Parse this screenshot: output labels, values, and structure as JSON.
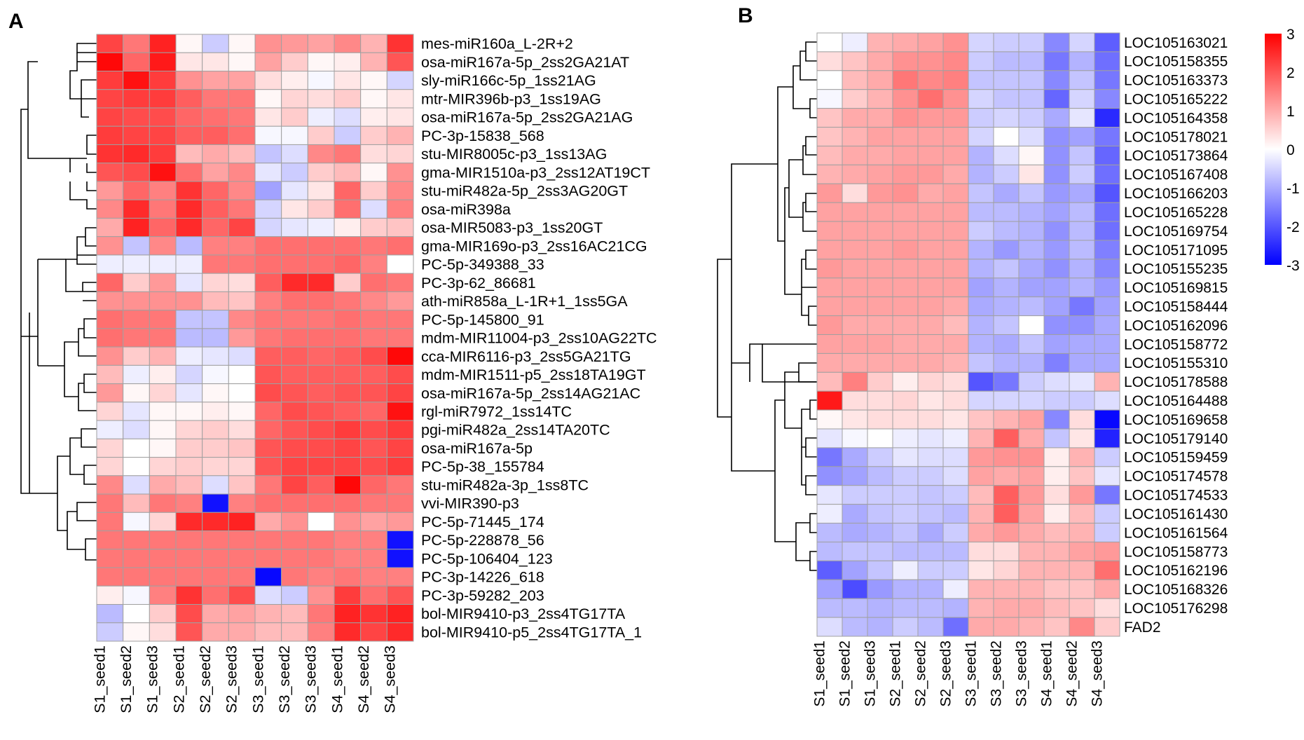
{
  "chart_data": [
    {
      "type": "heatmap",
      "panel_label": "A",
      "title": "",
      "columns": [
        "S1_seed1",
        "S1_seed2",
        "S1_seed3",
        "S2_seed1",
        "S2_seed2",
        "S2_seed3",
        "S3_seed1",
        "S3_seed2",
        "S3_seed3",
        "S4_seed1",
        "S4_seed2",
        "S4_seed3"
      ],
      "rows": [
        "mes-miR160a_L-2R+2",
        "osa-miR167a-5p_2ss2GA21AT",
        "sly-miR166c-5p_1ss21AG",
        "mtr-MIR396b-p3_1ss19AG",
        "osa-miR167a-5p_2ss2GA21AG",
        "PC-3p-15838_568",
        "stu-MIR8005c-p3_1ss13AG",
        "gma-MIR1510a-p3_2ss12AT19CT",
        "stu-miR482a-5p_2ss3AG20GT",
        "osa-miR398a",
        "osa-MIR5083-p3_1ss20GT",
        "gma-MIR169o-p3_2ss16AC21CG",
        "PC-5p-349388_33",
        "PC-3p-62_86681",
        "ath-miR858a_L-1R+1_1ss5GA",
        "PC-5p-145800_91",
        "mdm-MIR11004-p3_2ss10AG22TC",
        "cca-MIR6116-p3_2ss5GA21TG",
        "mdm-MIR1511-p5_2ss18TA19GT",
        "osa-miR167a-5p_2ss14AG21AC",
        "rgl-miR7972_1ss14TC",
        "pgi-miR482a_2ss14TA20TC",
        "osa-miR167a-5p",
        "PC-5p-38_155784",
        "stu-miR482a-3p_1ss8TC",
        "vvi-MIR390-p3",
        "PC-5p-71445_174",
        "PC-5p-228878_56",
        "PC-5p-106404_123",
        "PC-3p-14226_618",
        "PC-3p-59282_203",
        "bol-MIR9410-p3_2ss4TG17TA",
        "bol-MIR9410-p5_2ss4TG17TA_1"
      ],
      "values": [
        [
          2.2,
          1.6,
          2.6,
          0.1,
          -0.6,
          0.1,
          1.3,
          1.2,
          1.1,
          1.4,
          0.9,
          2.4
        ],
        [
          2.9,
          1.8,
          2.7,
          0.3,
          0.3,
          0.1,
          1.1,
          0.6,
          0.1,
          0.2,
          0.9,
          2.0
        ],
        [
          2.3,
          2.8,
          2.3,
          1.3,
          1.1,
          1.1,
          0.4,
          0.2,
          -0.1,
          0.3,
          0.1,
          -0.5
        ],
        [
          2.2,
          2.3,
          2.3,
          1.9,
          1.6,
          1.6,
          0.1,
          0.5,
          0.4,
          0.6,
          0.1,
          0.3
        ],
        [
          2.2,
          2.1,
          2.1,
          1.8,
          1.7,
          1.6,
          0.3,
          0.6,
          -0.2,
          -0.4,
          0.2,
          0.3
        ],
        [
          2.3,
          2.2,
          2.2,
          1.9,
          1.9,
          1.7,
          -0.1,
          -0.1,
          0.6,
          -0.6,
          0.6,
          0.9
        ],
        [
          2.4,
          2.5,
          2.3,
          0.8,
          1.0,
          0.8,
          -0.7,
          -0.4,
          1.4,
          1.6,
          0.4,
          0.5
        ],
        [
          2.0,
          2.1,
          2.8,
          1.7,
          1.1,
          1.4,
          -0.3,
          -0.6,
          0.6,
          0.8,
          0.1,
          1.3
        ],
        [
          1.2,
          1.8,
          1.5,
          2.4,
          1.8,
          1.4,
          -1.1,
          -0.3,
          0.3,
          1.8,
          0.6,
          1.4
        ],
        [
          1.4,
          2.5,
          1.6,
          2.5,
          1.9,
          1.6,
          -0.5,
          0.3,
          0.6,
          1.7,
          -0.4,
          1.5
        ],
        [
          1.0,
          2.6,
          1.8,
          2.5,
          1.8,
          2.2,
          -0.5,
          -0.3,
          -0.2,
          0.2,
          0.6,
          0.7
        ],
        [
          1.3,
          -0.7,
          1.4,
          -0.8,
          1.5,
          1.5,
          1.7,
          1.7,
          1.7,
          1.7,
          1.6,
          1.7
        ],
        [
          -0.2,
          -0.2,
          -0.2,
          -0.2,
          1.6,
          1.6,
          1.7,
          1.7,
          1.7,
          1.8,
          1.5,
          0.0
        ],
        [
          1.8,
          0.6,
          1.2,
          -0.3,
          0.5,
          0.4,
          1.9,
          2.5,
          2.5,
          0.6,
          1.7,
          1.6
        ],
        [
          1.3,
          1.3,
          1.3,
          1.3,
          0.8,
          0.7,
          1.5,
          1.7,
          1.7,
          1.6,
          1.4,
          1.2
        ],
        [
          1.7,
          1.6,
          1.6,
          -0.7,
          -0.7,
          1.4,
          1.6,
          1.6,
          1.6,
          1.7,
          1.6,
          1.6
        ],
        [
          1.7,
          1.6,
          1.6,
          -0.8,
          -0.8,
          1.2,
          1.6,
          1.7,
          1.7,
          1.7,
          1.6,
          1.6
        ],
        [
          1.3,
          0.6,
          0.9,
          -0.2,
          -0.3,
          -0.4,
          1.9,
          1.9,
          1.8,
          1.9,
          2.1,
          2.9
        ],
        [
          0.8,
          -0.2,
          0.2,
          -0.5,
          -0.1,
          0.0,
          2.0,
          1.9,
          1.9,
          1.9,
          1.9,
          2.1
        ],
        [
          1.2,
          0.1,
          0.5,
          -0.3,
          0.1,
          0.0,
          2.1,
          2.0,
          1.9,
          2.0,
          2.0,
          2.2
        ],
        [
          0.5,
          -0.3,
          0.1,
          0.1,
          0.2,
          0.1,
          1.8,
          2.1,
          2.0,
          1.9,
          1.8,
          2.8
        ],
        [
          -0.2,
          -0.4,
          0.1,
          0.5,
          0.6,
          0.4,
          1.8,
          2.0,
          2.1,
          2.3,
          2.1,
          2.3
        ],
        [
          0.5,
          0.0,
          0.1,
          0.6,
          0.6,
          0.7,
          2.0,
          2.1,
          2.1,
          2.2,
          2.0,
          2.2
        ],
        [
          0.5,
          0.0,
          0.5,
          0.6,
          0.5,
          0.5,
          2.0,
          2.2,
          2.2,
          2.2,
          2.1,
          2.3
        ],
        [
          1.4,
          -0.4,
          1.0,
          0.8,
          -0.4,
          0.7,
          1.6,
          2.2,
          1.9,
          2.9,
          1.8,
          1.6
        ],
        [
          1.6,
          0.8,
          1.6,
          1.5,
          -2.8,
          1.5,
          1.7,
          1.7,
          1.7,
          1.7,
          1.6,
          1.6
        ],
        [
          1.6,
          -0.1,
          0.5,
          2.5,
          2.5,
          2.6,
          1.0,
          1.3,
          0.0,
          1.3,
          1.1,
          1.2
        ],
        [
          1.6,
          1.6,
          1.6,
          1.6,
          1.6,
          1.6,
          1.6,
          1.6,
          1.6,
          1.5,
          1.5,
          -2.8
        ],
        [
          1.6,
          1.6,
          1.6,
          1.6,
          1.6,
          1.6,
          1.6,
          1.6,
          1.6,
          1.5,
          1.5,
          -2.8
        ],
        [
          1.6,
          1.6,
          1.6,
          1.6,
          1.6,
          1.6,
          -2.9,
          1.6,
          1.5,
          1.6,
          1.5,
          1.5
        ],
        [
          0.2,
          -0.1,
          1.5,
          2.4,
          1.7,
          2.1,
          -0.4,
          -0.6,
          1.3,
          2.3,
          1.7,
          2.0
        ],
        [
          -0.8,
          0.0,
          0.6,
          2.1,
          1.0,
          1.1,
          0.9,
          0.8,
          1.6,
          2.6,
          2.4,
          2.6
        ],
        [
          -0.6,
          0.1,
          0.4,
          2.0,
          1.0,
          1.0,
          0.8,
          0.8,
          1.5,
          2.5,
          2.2,
          2.5
        ]
      ],
      "scale_range": [
        -3,
        3
      ]
    },
    {
      "type": "heatmap",
      "panel_label": "B",
      "title": "",
      "columns": [
        "S1_seed1",
        "S1_seed2",
        "S1_seed3",
        "S2_seed1",
        "S2_seed2",
        "S2_seed3",
        "S3_seed1",
        "S3_seed2",
        "S3_seed3",
        "S4_seed1",
        "S4_seed2",
        "S4_seed3"
      ],
      "rows": [
        "LOC105163021",
        "LOC105158355",
        "LOC105163373",
        "LOC105165222",
        "LOC105164358",
        "LOC105178021",
        "LOC105173864",
        "LOC105167408",
        "LOC105166203",
        "LOC105165228",
        "LOC105169754",
        "LOC105171095",
        "LOC105155235",
        "LOC105169815",
        "LOC105158444",
        "LOC105162096",
        "LOC105158772",
        "LOC105155310",
        "LOC105178588",
        "LOC105164488",
        "LOC105169658",
        "LOC105179140",
        "LOC105159459",
        "LOC105174578",
        "LOC105174533",
        "LOC105161430",
        "LOC105161564",
        "LOC105158773",
        "LOC105162196",
        "LOC105168326",
        "LOC105176298",
        "FAD2"
      ],
      "values": [
        [
          0.0,
          -0.2,
          0.9,
          1.0,
          1.1,
          1.3,
          -0.5,
          -0.6,
          -0.6,
          -1.4,
          -0.5,
          -1.9
        ],
        [
          0.4,
          0.7,
          1.0,
          1.3,
          1.3,
          1.4,
          -0.6,
          -0.8,
          -0.8,
          -1.6,
          -0.9,
          -1.7
        ],
        [
          0.0,
          0.8,
          1.0,
          1.6,
          1.4,
          1.5,
          -0.7,
          -0.7,
          -0.7,
          -1.4,
          -0.7,
          -1.6
        ],
        [
          -0.1,
          0.6,
          0.9,
          1.3,
          1.7,
          1.3,
          -0.5,
          -0.7,
          -0.7,
          -1.8,
          -0.5,
          -1.4
        ],
        [
          0.7,
          1.0,
          1.0,
          1.3,
          1.2,
          1.2,
          -0.6,
          -0.5,
          -0.6,
          -1.0,
          -0.3,
          -2.5
        ],
        [
          0.7,
          0.9,
          1.1,
          1.1,
          1.1,
          1.1,
          -0.5,
          0.0,
          -0.4,
          -1.3,
          -1.1,
          -1.6
        ],
        [
          0.8,
          1.0,
          1.0,
          1.1,
          1.1,
          1.1,
          -0.9,
          -0.4,
          0.1,
          -1.3,
          -0.7,
          -1.8
        ],
        [
          0.9,
          1.0,
          1.1,
          1.2,
          1.2,
          1.0,
          -0.9,
          -0.6,
          0.3,
          -1.3,
          -0.6,
          -1.7
        ],
        [
          1.2,
          0.4,
          1.2,
          1.3,
          1.0,
          1.1,
          -0.7,
          -1.0,
          -0.7,
          -1.2,
          -1.0,
          -2.0
        ],
        [
          1.1,
          1.1,
          1.1,
          1.1,
          1.1,
          1.1,
          -0.8,
          -0.8,
          -0.9,
          -1.1,
          -0.8,
          -1.7
        ],
        [
          1.1,
          1.1,
          1.1,
          1.1,
          1.1,
          1.1,
          -0.6,
          -0.8,
          -0.9,
          -1.3,
          -0.8,
          -1.7
        ],
        [
          1.1,
          1.1,
          1.1,
          1.2,
          1.1,
          1.1,
          -0.9,
          -1.2,
          -0.9,
          -1.2,
          -0.8,
          -1.5
        ],
        [
          1.2,
          1.1,
          1.1,
          1.1,
          1.1,
          1.1,
          -0.9,
          -0.7,
          -1.0,
          -1.3,
          -0.9,
          -1.4
        ],
        [
          1.1,
          1.1,
          1.1,
          1.1,
          1.1,
          1.1,
          -1.1,
          -0.9,
          -1.1,
          -1.1,
          -0.9,
          -1.2
        ],
        [
          1.1,
          1.1,
          1.1,
          1.1,
          1.1,
          1.0,
          -1.0,
          -0.9,
          -0.8,
          -1.1,
          -1.6,
          -1.1
        ],
        [
          1.2,
          1.0,
          1.0,
          1.0,
          1.0,
          0.8,
          -0.9,
          -0.7,
          0.0,
          -1.3,
          -1.3,
          -1.0
        ],
        [
          1.1,
          1.1,
          1.1,
          1.0,
          1.0,
          1.0,
          -0.9,
          -1.0,
          -0.7,
          -1.1,
          -1.0,
          -1.0
        ],
        [
          1.0,
          1.0,
          1.0,
          1.0,
          1.0,
          0.9,
          -0.7,
          -0.9,
          -0.9,
          -1.5,
          -1.0,
          -1.0
        ],
        [
          0.8,
          1.5,
          0.6,
          0.2,
          0.5,
          0.4,
          -2.0,
          -1.6,
          -0.6,
          -0.4,
          -0.3,
          0.9
        ],
        [
          2.7,
          0.4,
          0.4,
          0.5,
          0.3,
          0.4,
          -0.5,
          -0.5,
          -0.5,
          -0.6,
          -0.6,
          -0.4
        ],
        [
          0.1,
          0.3,
          0.4,
          0.4,
          0.4,
          0.3,
          0.7,
          0.9,
          1.1,
          -1.4,
          0.4,
          -2.9
        ],
        [
          -0.3,
          -0.1,
          0.0,
          -0.2,
          -0.3,
          -0.2,
          0.9,
          1.9,
          1.0,
          -0.7,
          0.3,
          -2.6
        ],
        [
          -1.6,
          -1.0,
          -0.6,
          -0.3,
          -0.4,
          -0.4,
          1.2,
          1.3,
          1.3,
          0.2,
          0.9,
          -0.6
        ],
        [
          -1.3,
          -1.1,
          -0.8,
          -0.6,
          -0.6,
          -0.4,
          1.1,
          1.0,
          1.1,
          0.2,
          0.7,
          -0.3
        ],
        [
          -0.3,
          -0.6,
          -0.6,
          -0.6,
          -0.7,
          -0.6,
          0.8,
          1.9,
          1.2,
          0.4,
          1.2,
          -1.6
        ],
        [
          -0.2,
          -1.0,
          -0.7,
          -0.6,
          -0.7,
          -0.8,
          0.9,
          1.9,
          1.1,
          0.2,
          0.8,
          -0.6
        ],
        [
          -0.8,
          -1.0,
          -0.9,
          -0.7,
          -1.0,
          -0.6,
          1.0,
          1.2,
          1.0,
          0.8,
          0.9,
          -0.6
        ],
        [
          -0.8,
          -0.7,
          -0.7,
          -0.8,
          -0.8,
          -0.8,
          0.4,
          0.4,
          0.9,
          0.9,
          1.1,
          1.2
        ],
        [
          -1.9,
          -1.1,
          -0.7,
          -0.2,
          -0.6,
          -0.6,
          0.3,
          0.5,
          0.9,
          0.9,
          0.9,
          1.7
        ],
        [
          -1.1,
          -2.1,
          -1.2,
          -0.9,
          -0.9,
          -0.2,
          0.9,
          0.9,
          0.9,
          0.7,
          0.7,
          1.0
        ],
        [
          -0.8,
          -0.8,
          -0.9,
          -0.8,
          -0.8,
          -0.9,
          0.9,
          1.0,
          1.0,
          0.8,
          0.7,
          0.4
        ],
        [
          -0.4,
          -0.8,
          -0.9,
          -0.6,
          -0.8,
          -1.7,
          1.0,
          1.0,
          0.9,
          0.7,
          1.4,
          0.6
        ]
      ],
      "scale_range": [
        -3,
        3
      ],
      "legend_ticks": [
        "3",
        "2",
        "1",
        "0",
        "-1",
        "-2",
        "-3"
      ]
    }
  ]
}
